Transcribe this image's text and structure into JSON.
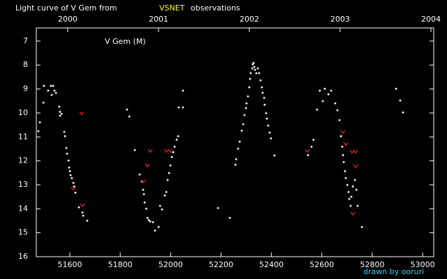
{
  "chart_data": {
    "type": "scatter",
    "title": {
      "prefix": "Light curve of V Gem from",
      "highlight": "VSNET",
      "suffix": "observations"
    },
    "label": "V Gem (M)",
    "credit": "drawn by ooruri",
    "xlim": [
      51467,
      53044
    ],
    "xticks": [
      51600,
      51800,
      52000,
      52200,
      52400,
      52600,
      52800,
      53000
    ],
    "x2lim": [
      1999.654,
      2004.031
    ],
    "x2ticks": [
      2000,
      2001,
      2002,
      2003,
      2004
    ],
    "ylim": [
      16,
      6.45
    ],
    "yticks": [
      7,
      8,
      9,
      10,
      11,
      12,
      13,
      14,
      15,
      16
    ],
    "highlight_color": "#ffff30",
    "credit_color": "#30d0ff",
    "series": [
      {
        "color": "#ffffff",
        "marker": "dot",
        "x": [
          51475,
          51481,
          51495,
          51497,
          51514,
          51525,
          51534,
          51528,
          51539,
          51545,
          51558,
          51561,
          51561,
          51567,
          51578,
          51581,
          51586,
          51589,
          51595,
          51597,
          51600,
          51603,
          51608,
          51614,
          51617,
          51622,
          51636,
          51650,
          51653,
          51669,
          51827,
          51836,
          51858,
          51877,
          51886,
          51891,
          51894,
          51897,
          51903,
          51908,
          51913,
          51919,
          51930,
          51938,
          51952,
          51958,
          51966,
          51977,
          51983,
          51988,
          51994,
          51999,
          52005,
          52010,
          52016,
          52024,
          52030,
          52032,
          52049,
          52049,
          52188,
          52235,
          52257,
          52260,
          52268,
          52274,
          52282,
          52288,
          52293,
          52299,
          52301,
          52307,
          52312,
          52315,
          52318,
          52324,
          52326,
          52329,
          52332,
          52335,
          52340,
          52346,
          52351,
          52357,
          52362,
          52365,
          52371,
          52373,
          52379,
          52382,
          52387,
          52393,
          52398,
          52412,
          52545,
          52559,
          52567,
          52581,
          52592,
          52604,
          52612,
          52626,
          52637,
          52653,
          52662,
          52670,
          52676,
          52681,
          52684,
          52687,
          52692,
          52695,
          52701,
          52706,
          52709,
          52714,
          52717,
          52723,
          52731,
          52737,
          52742,
          52759,
          52895,
          52911,
          52922
        ],
        "values": [
          10.76,
          10.39,
          9.57,
          8.87,
          9.07,
          8.87,
          8.87,
          9.25,
          9.07,
          9.16,
          9.74,
          9.95,
          10.12,
          10.04,
          10.79,
          10.97,
          11.46,
          11.7,
          11.99,
          12.28,
          12.43,
          12.6,
          12.72,
          12.92,
          13.07,
          13.33,
          13.94,
          14.15,
          14.29,
          14.5,
          9.86,
          10.15,
          11.55,
          12.57,
          12.86,
          13.21,
          13.39,
          13.74,
          14.0,
          14.38,
          14.47,
          14.53,
          14.56,
          14.91,
          14.76,
          13.88,
          14.03,
          13.45,
          13.3,
          12.8,
          12.51,
          12.19,
          11.84,
          11.64,
          11.41,
          11.12,
          10.97,
          9.77,
          9.77,
          9.07,
          13.97,
          14.38,
          12.16,
          11.93,
          11.49,
          11.2,
          10.74,
          10.47,
          10.09,
          9.8,
          9.6,
          9.31,
          8.93,
          8.58,
          8.34,
          8.14,
          7.97,
          7.91,
          8.08,
          8.2,
          8.34,
          8.14,
          8.34,
          8.64,
          8.93,
          9.16,
          9.37,
          9.66,
          10.01,
          10.24,
          10.53,
          10.82,
          11.06,
          11.78,
          11.76,
          11.41,
          11.12,
          9.86,
          9.07,
          9.51,
          8.99,
          9.22,
          9.07,
          9.6,
          9.89,
          10.3,
          10.97,
          11.41,
          11.76,
          12.05,
          12.43,
          12.72,
          13.01,
          13.3,
          13.59,
          13.88,
          13.5,
          13.07,
          12.8,
          13.21,
          13.88,
          14.76,
          8.99,
          9.48,
          9.98
        ]
      },
      {
        "color": "#ff2020",
        "marker": "v",
        "x": [
          51647,
          51650,
          51614,
          51891,
          51908,
          51919,
          51983,
          51999,
          52543,
          52684,
          52695,
          52720,
          52734,
          52734,
          52723
        ],
        "values": [
          10.01,
          13.85,
          13.15,
          12.86,
          12.19,
          11.58,
          11.58,
          11.58,
          11.58,
          10.79,
          11.29,
          11.61,
          11.61,
          12.22,
          14.2
        ]
      }
    ]
  }
}
